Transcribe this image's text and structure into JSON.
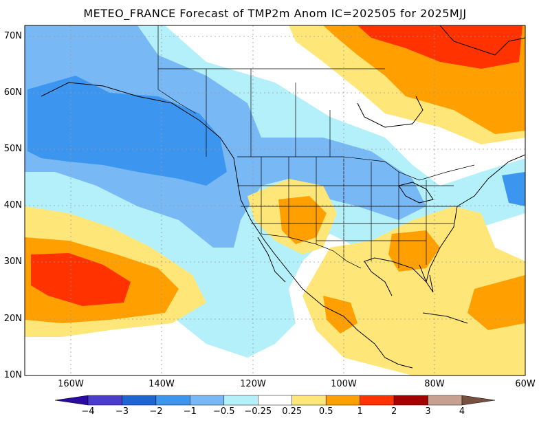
{
  "title": "METEO_FRANCE Forecast of TMP2m Anom IC=202505 for 2025MJJ",
  "axes": {
    "lat_labels": [
      "70N",
      "60N",
      "50N",
      "40N",
      "30N",
      "20N",
      "10N"
    ],
    "lon_labels": [
      "160W",
      "140W",
      "120W",
      "100W",
      "80W",
      "60W"
    ]
  },
  "colorbar": {
    "labels": [
      "−4",
      "−3",
      "−2",
      "−1",
      "−0.5",
      "−0.25",
      "0.25",
      "0.5",
      "1",
      "2",
      "3",
      "4"
    ],
    "colors": [
      "#2a0aa0",
      "#4a3ccc",
      "#1e64d2",
      "#3c96f0",
      "#78b9f5",
      "#b4f0fa",
      "#ffffff",
      "#ffe678",
      "#ffa000",
      "#ff3200",
      "#a50000",
      "#c8a090",
      "#785040"
    ]
  },
  "map_colors": {
    "ocean_neutral": "#ffffff",
    "light_cool": "#b4f0fa",
    "moderate_cool": "#78b9f5",
    "cool": "#3c96f0",
    "light_warm": "#ffe678",
    "warm": "#ffa000",
    "very_warm": "#ff3200",
    "coastline": "#000000",
    "gridline": "#999999"
  }
}
